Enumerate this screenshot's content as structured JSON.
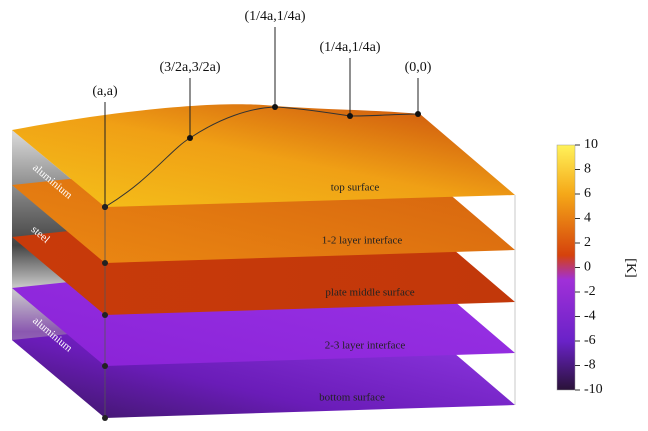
{
  "points": [
    {
      "label": "(a,a)"
    },
    {
      "label": "(3/2a,3/2a)"
    },
    {
      "label": "(1/4a,1/4a)"
    },
    {
      "label": "(1/4a,1/4a)"
    },
    {
      "label": "(0,0)"
    }
  ],
  "layers": [
    {
      "label": "top surface"
    },
    {
      "label": "1-2 layer interface"
    },
    {
      "label": "plate middle surface"
    },
    {
      "label": "2-3 layer interface"
    },
    {
      "label": "bottom surface"
    }
  ],
  "materials": [
    {
      "label": "aluminium"
    },
    {
      "label": "steel"
    },
    {
      "label": "aluminium"
    }
  ],
  "colorbar": {
    "range": [
      -10,
      10
    ],
    "ticks": [
      10,
      8,
      6,
      4,
      2,
      0,
      -2,
      -4,
      -6,
      -8,
      -10
    ],
    "unit": "[K]"
  }
}
